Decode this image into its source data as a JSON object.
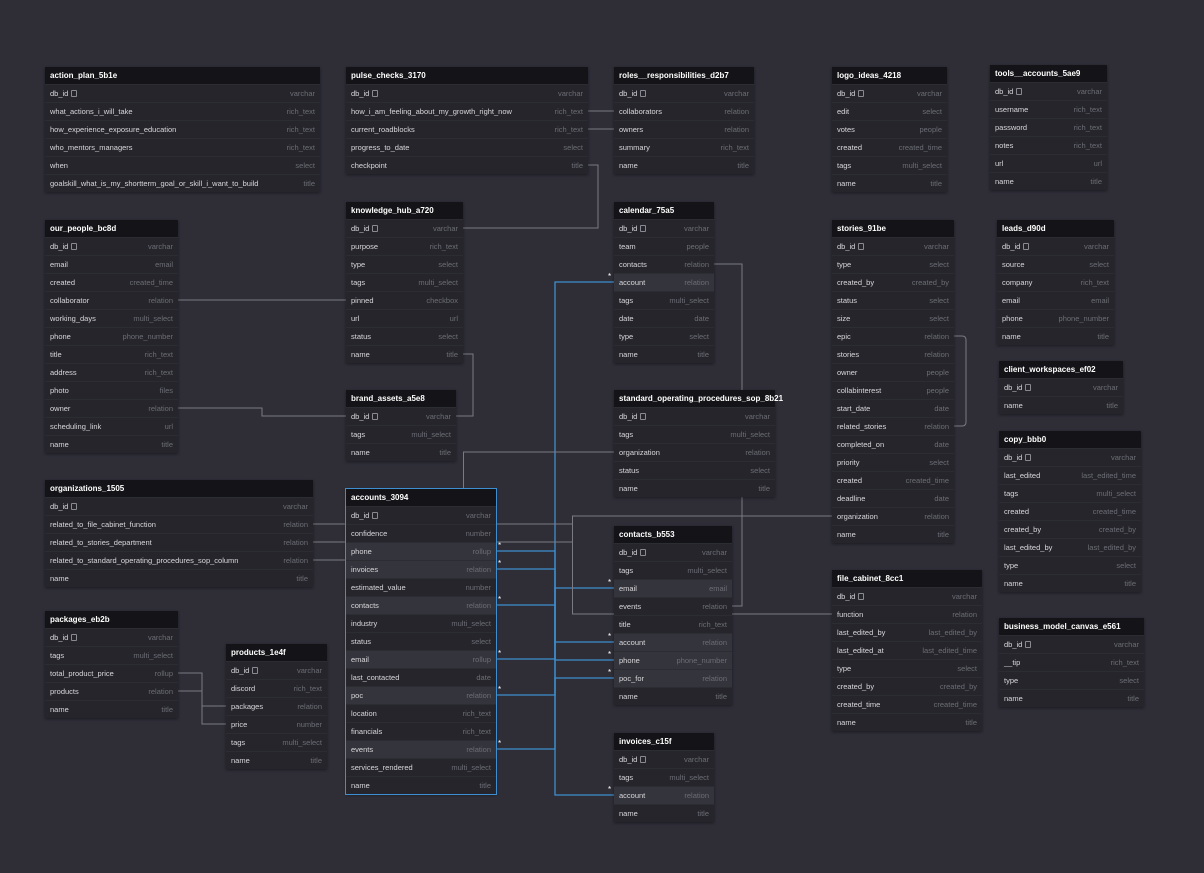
{
  "colors": {
    "background": "#2f2e37",
    "table": "#25252b",
    "header": "#141418",
    "edge": "#7a7a82",
    "highlight_edge": "#3d8fd0"
  },
  "tables": [
    {
      "id": "action_plan",
      "name": "action_plan_5b1e",
      "fields": [
        {
          "name": "db_id",
          "type": "varchar",
          "key": true
        },
        {
          "name": "what_actions_i_will_take",
          "type": "rich_text"
        },
        {
          "name": "how_experience_exposure_education",
          "type": "rich_text"
        },
        {
          "name": "who_mentors_managers",
          "type": "rich_text"
        },
        {
          "name": "when",
          "type": "select"
        },
        {
          "name": "goalskill_what_is_my_shortterm_goal_or_skill_i_want_to_build",
          "type": "title"
        }
      ]
    },
    {
      "id": "pulse_checks",
      "name": "pulse_checks_3170",
      "fields": [
        {
          "name": "db_id",
          "type": "varchar",
          "key": true
        },
        {
          "name": "how_i_am_feeling_about_my_growth_right_now",
          "type": "rich_text"
        },
        {
          "name": "current_roadblocks",
          "type": "rich_text"
        },
        {
          "name": "progress_to_date",
          "type": "select"
        },
        {
          "name": "checkpoint",
          "type": "title"
        }
      ]
    },
    {
      "id": "roles",
      "name": "roles__responsibilities_d2b7",
      "fields": [
        {
          "name": "db_id",
          "type": "varchar",
          "key": true
        },
        {
          "name": "collaborators",
          "type": "relation"
        },
        {
          "name": "owners",
          "type": "relation"
        },
        {
          "name": "summary",
          "type": "rich_text"
        },
        {
          "name": "name",
          "type": "title"
        }
      ]
    },
    {
      "id": "logo_ideas",
      "name": "logo_ideas_4218",
      "fields": [
        {
          "name": "db_id",
          "type": "varchar",
          "key": true
        },
        {
          "name": "edit",
          "type": "select"
        },
        {
          "name": "votes",
          "type": "people"
        },
        {
          "name": "created",
          "type": "created_time"
        },
        {
          "name": "tags",
          "type": "multi_select"
        },
        {
          "name": "name",
          "type": "title"
        }
      ]
    },
    {
      "id": "tools_accounts",
      "name": "tools__accounts_5ae9",
      "fields": [
        {
          "name": "db_id",
          "type": "varchar",
          "key": true
        },
        {
          "name": "username",
          "type": "rich_text"
        },
        {
          "name": "password",
          "type": "rich_text"
        },
        {
          "name": "notes",
          "type": "rich_text"
        },
        {
          "name": "url",
          "type": "url"
        },
        {
          "name": "name",
          "type": "title"
        }
      ]
    },
    {
      "id": "our_people",
      "name": "our_people_bc8d",
      "fields": [
        {
          "name": "db_id",
          "type": "varchar",
          "key": true
        },
        {
          "name": "email",
          "type": "email"
        },
        {
          "name": "created",
          "type": "created_time"
        },
        {
          "name": "collaborator",
          "type": "relation"
        },
        {
          "name": "working_days",
          "type": "multi_select"
        },
        {
          "name": "phone",
          "type": "phone_number"
        },
        {
          "name": "title",
          "type": "rich_text"
        },
        {
          "name": "address",
          "type": "rich_text"
        },
        {
          "name": "photo",
          "type": "files"
        },
        {
          "name": "owner",
          "type": "relation"
        },
        {
          "name": "scheduling_link",
          "type": "url"
        },
        {
          "name": "name",
          "type": "title"
        }
      ]
    },
    {
      "id": "knowledge_hub",
      "name": "knowledge_hub_a720",
      "fields": [
        {
          "name": "db_id",
          "type": "varchar",
          "key": true
        },
        {
          "name": "purpose",
          "type": "rich_text"
        },
        {
          "name": "type",
          "type": "select"
        },
        {
          "name": "tags",
          "type": "multi_select"
        },
        {
          "name": "pinned",
          "type": "checkbox"
        },
        {
          "name": "url",
          "type": "url"
        },
        {
          "name": "status",
          "type": "select"
        },
        {
          "name": "name",
          "type": "title"
        }
      ]
    },
    {
      "id": "calendar",
      "name": "calendar_75a5",
      "fields": [
        {
          "name": "db_id",
          "type": "varchar",
          "key": true
        },
        {
          "name": "team",
          "type": "people"
        },
        {
          "name": "contacts",
          "type": "relation"
        },
        {
          "name": "account",
          "type": "relation",
          "hi": true
        },
        {
          "name": "tags",
          "type": "multi_select"
        },
        {
          "name": "date",
          "type": "date"
        },
        {
          "name": "type",
          "type": "select"
        },
        {
          "name": "name",
          "type": "title"
        }
      ]
    },
    {
      "id": "stories",
      "name": "stories_91be",
      "fields": [
        {
          "name": "db_id",
          "type": "varchar",
          "key": true
        },
        {
          "name": "type",
          "type": "select"
        },
        {
          "name": "created_by",
          "type": "created_by"
        },
        {
          "name": "status",
          "type": "select"
        },
        {
          "name": "size",
          "type": "select"
        },
        {
          "name": "epic",
          "type": "relation"
        },
        {
          "name": "stories",
          "type": "relation"
        },
        {
          "name": "owner",
          "type": "people"
        },
        {
          "name": "collabinterest",
          "type": "people"
        },
        {
          "name": "start_date",
          "type": "date"
        },
        {
          "name": "related_stories",
          "type": "relation"
        },
        {
          "name": "completed_on",
          "type": "date"
        },
        {
          "name": "priority",
          "type": "select"
        },
        {
          "name": "created",
          "type": "created_time"
        },
        {
          "name": "deadline",
          "type": "date"
        },
        {
          "name": "organization",
          "type": "relation"
        },
        {
          "name": "name",
          "type": "title"
        }
      ]
    },
    {
      "id": "leads",
      "name": "leads_d90d",
      "fields": [
        {
          "name": "db_id",
          "type": "varchar",
          "key": true
        },
        {
          "name": "source",
          "type": "select"
        },
        {
          "name": "company",
          "type": "rich_text"
        },
        {
          "name": "email",
          "type": "email"
        },
        {
          "name": "phone",
          "type": "phone_number"
        },
        {
          "name": "name",
          "type": "title"
        }
      ]
    },
    {
      "id": "client_workspaces",
      "name": "client_workspaces_ef02",
      "fields": [
        {
          "name": "db_id",
          "type": "varchar",
          "key": true
        },
        {
          "name": "name",
          "type": "title"
        }
      ]
    },
    {
      "id": "brand_assets",
      "name": "brand_assets_a5e8",
      "fields": [
        {
          "name": "db_id",
          "type": "varchar",
          "key": true
        },
        {
          "name": "tags",
          "type": "multi_select"
        },
        {
          "name": "name",
          "type": "title"
        }
      ]
    },
    {
      "id": "sop",
      "name": "standard_operating_procedures_sop_8b21",
      "fields": [
        {
          "name": "db_id",
          "type": "varchar",
          "key": true
        },
        {
          "name": "tags",
          "type": "multi_select"
        },
        {
          "name": "organization",
          "type": "relation"
        },
        {
          "name": "status",
          "type": "select"
        },
        {
          "name": "name",
          "type": "title"
        }
      ]
    },
    {
      "id": "copy",
      "name": "copy_bbb0",
      "fields": [
        {
          "name": "db_id",
          "type": "varchar",
          "key": true
        },
        {
          "name": "last_edited",
          "type": "last_edited_time"
        },
        {
          "name": "tags",
          "type": "multi_select"
        },
        {
          "name": "created",
          "type": "created_time"
        },
        {
          "name": "created_by",
          "type": "created_by"
        },
        {
          "name": "last_edited_by",
          "type": "last_edited_by"
        },
        {
          "name": "type",
          "type": "select"
        },
        {
          "name": "name",
          "type": "title"
        }
      ]
    },
    {
      "id": "organizations",
      "name": "organizations_1505",
      "fields": [
        {
          "name": "db_id",
          "type": "varchar",
          "key": true
        },
        {
          "name": "related_to_file_cabinet_function",
          "type": "relation"
        },
        {
          "name": "related_to_stories_department",
          "type": "relation"
        },
        {
          "name": "related_to_standard_operating_procedures_sop_column",
          "type": "relation"
        },
        {
          "name": "name",
          "type": "title"
        }
      ]
    },
    {
      "id": "accounts",
      "name": "accounts_3094",
      "highlight": true,
      "fields": [
        {
          "name": "db_id",
          "type": "varchar",
          "key": true
        },
        {
          "name": "confidence",
          "type": "number"
        },
        {
          "name": "phone",
          "type": "rollup",
          "hi": true
        },
        {
          "name": "invoices",
          "type": "relation",
          "hi": true
        },
        {
          "name": "estimated_value",
          "type": "number"
        },
        {
          "name": "contacts",
          "type": "relation",
          "hi": true
        },
        {
          "name": "industry",
          "type": "multi_select"
        },
        {
          "name": "status",
          "type": "select"
        },
        {
          "name": "email",
          "type": "rollup",
          "hi": true
        },
        {
          "name": "last_contacted",
          "type": "date"
        },
        {
          "name": "poc",
          "type": "relation",
          "hi": true
        },
        {
          "name": "location",
          "type": "rich_text"
        },
        {
          "name": "financials",
          "type": "rich_text"
        },
        {
          "name": "events",
          "type": "relation",
          "hi": true
        },
        {
          "name": "services_rendered",
          "type": "multi_select"
        },
        {
          "name": "name",
          "type": "title"
        }
      ]
    },
    {
      "id": "contacts",
      "name": "contacts_b553",
      "fields": [
        {
          "name": "db_id",
          "type": "varchar",
          "key": true
        },
        {
          "name": "tags",
          "type": "multi_select"
        },
        {
          "name": "email",
          "type": "email",
          "hi": true
        },
        {
          "name": "events",
          "type": "relation"
        },
        {
          "name": "title",
          "type": "rich_text"
        },
        {
          "name": "account",
          "type": "relation",
          "hi": true
        },
        {
          "name": "phone",
          "type": "phone_number",
          "hi": true
        },
        {
          "name": "poc_for",
          "type": "relation",
          "hi": true
        },
        {
          "name": "name",
          "type": "title"
        }
      ]
    },
    {
      "id": "file_cabinet",
      "name": "file_cabinet_8cc1",
      "fields": [
        {
          "name": "db_id",
          "type": "varchar",
          "key": true
        },
        {
          "name": "function",
          "type": "relation"
        },
        {
          "name": "last_edited_by",
          "type": "last_edited_by"
        },
        {
          "name": "last_edited_at",
          "type": "last_edited_time"
        },
        {
          "name": "type",
          "type": "select"
        },
        {
          "name": "created_by",
          "type": "created_by"
        },
        {
          "name": "created_time",
          "type": "created_time"
        },
        {
          "name": "name",
          "type": "title"
        }
      ]
    },
    {
      "id": "business_model",
      "name": "business_model_canvas_e561",
      "fields": [
        {
          "name": "db_id",
          "type": "varchar",
          "key": true
        },
        {
          "name": "__tip",
          "type": "rich_text"
        },
        {
          "name": "type",
          "type": "select"
        },
        {
          "name": "name",
          "type": "title"
        }
      ]
    },
    {
      "id": "packages",
      "name": "packages_eb2b",
      "fields": [
        {
          "name": "db_id",
          "type": "varchar",
          "key": true
        },
        {
          "name": "tags",
          "type": "multi_select"
        },
        {
          "name": "total_product_price",
          "type": "rollup"
        },
        {
          "name": "products",
          "type": "relation"
        },
        {
          "name": "name",
          "type": "title"
        }
      ]
    },
    {
      "id": "products",
      "name": "products_1e4f",
      "fields": [
        {
          "name": "db_id",
          "type": "varchar",
          "key": true
        },
        {
          "name": "discord",
          "type": "rich_text"
        },
        {
          "name": "packages",
          "type": "relation"
        },
        {
          "name": "price",
          "type": "number"
        },
        {
          "name": "tags",
          "type": "multi_select"
        },
        {
          "name": "name",
          "type": "title"
        }
      ]
    },
    {
      "id": "invoices",
      "name": "invoices_c15f",
      "fields": [
        {
          "name": "db_id",
          "type": "varchar",
          "key": true
        },
        {
          "name": "tags",
          "type": "multi_select"
        },
        {
          "name": "account",
          "type": "relation",
          "hi": true
        },
        {
          "name": "name",
          "type": "title"
        }
      ]
    }
  ],
  "relations": [
    {
      "from": [
        "accounts",
        "phone"
      ],
      "to": [
        "contacts",
        "phone"
      ],
      "highlight": true
    },
    {
      "from": [
        "accounts",
        "invoices"
      ],
      "to": [
        "invoices",
        "account"
      ],
      "highlight": true
    },
    {
      "from": [
        "accounts",
        "contacts"
      ],
      "to": [
        "contacts",
        "account"
      ],
      "highlight": true
    },
    {
      "from": [
        "accounts",
        "email"
      ],
      "to": [
        "contacts",
        "email"
      ],
      "highlight": true
    },
    {
      "from": [
        "accounts",
        "poc"
      ],
      "to": [
        "contacts",
        "poc_for"
      ],
      "highlight": true
    },
    {
      "from": [
        "accounts",
        "events"
      ],
      "to": [
        "calendar",
        "account"
      ],
      "highlight": true
    },
    {
      "from": [
        "roles",
        "collaborators"
      ],
      "to": [
        "pulse_checks",
        "how_i_am_feeling_about_my_growth_right_now"
      ]
    },
    {
      "from": [
        "roles",
        "owners"
      ],
      "to": [
        "pulse_checks",
        "current_roadblocks"
      ]
    },
    {
      "from": [
        "our_people",
        "collaborator"
      ],
      "to": [
        "knowledge_hub",
        "pinned"
      ]
    },
    {
      "from": [
        "our_people",
        "owner"
      ],
      "to": [
        "brand_assets",
        "db_id"
      ]
    },
    {
      "from": [
        "organizations",
        "related_to_file_cabinet_function"
      ],
      "to": [
        "file_cabinet",
        "function"
      ]
    },
    {
      "from": [
        "organizations",
        "related_to_stories_department"
      ],
      "to": [
        "stories",
        "organization"
      ]
    },
    {
      "from": [
        "organizations",
        "related_to_standard_operating_procedures_sop_column"
      ],
      "to": [
        "sop",
        "organization"
      ]
    },
    {
      "from": [
        "calendar",
        "contacts"
      ],
      "to": [
        "contacts",
        "events"
      ]
    },
    {
      "from": [
        "stories",
        "epic"
      ],
      "to": [
        "stories",
        "related_stories"
      ]
    },
    {
      "from": [
        "packages",
        "total_product_price"
      ],
      "to": [
        "products",
        "price"
      ]
    },
    {
      "from": [
        "packages",
        "products"
      ],
      "to": [
        "products",
        "packages"
      ]
    },
    {
      "from": [
        "pulse_checks",
        "checkpoint"
      ],
      "to": [
        "knowledge_hub",
        "db_id"
      ]
    },
    {
      "from": [
        "knowledge_hub",
        "name"
      ],
      "to": [
        "brand_assets",
        "db_id"
      ]
    }
  ]
}
